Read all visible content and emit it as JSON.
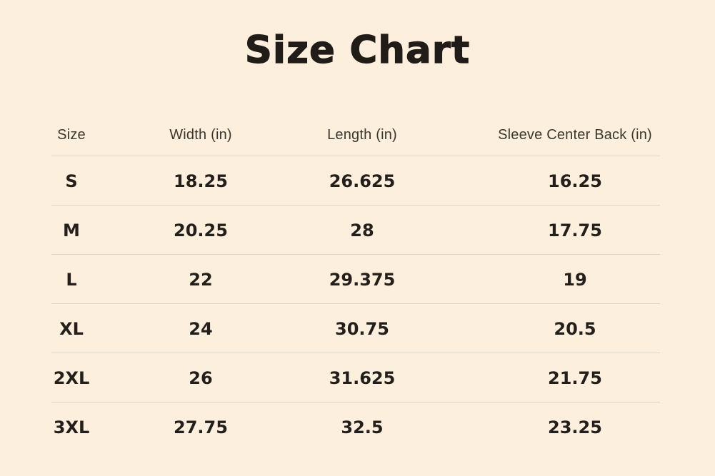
{
  "page": {
    "title": "Size Chart",
    "colors": {
      "background": "#fcefdd",
      "ink": "#211c17",
      "header_text": "#3b372f",
      "divider": "#ddd5c8"
    }
  },
  "chart_data": {
    "type": "table",
    "title": "Size Chart",
    "columns": [
      "Size",
      "Width (in)",
      "Length (in)",
      "Sleeve Center Back (in)"
    ],
    "rows": [
      [
        "S",
        "18.25",
        "26.625",
        "16.25"
      ],
      [
        "M",
        "20.25",
        "28",
        "17.75"
      ],
      [
        "L",
        "22",
        "29.375",
        "19"
      ],
      [
        "XL",
        "24",
        "30.75",
        "20.5"
      ],
      [
        "2XL",
        "26",
        "31.625",
        "21.75"
      ],
      [
        "3XL",
        "27.75",
        "32.5",
        "23.25"
      ]
    ],
    "layout": {
      "grid": "horizontal-rules-only",
      "last_row_rule": false,
      "units": "inches"
    }
  }
}
